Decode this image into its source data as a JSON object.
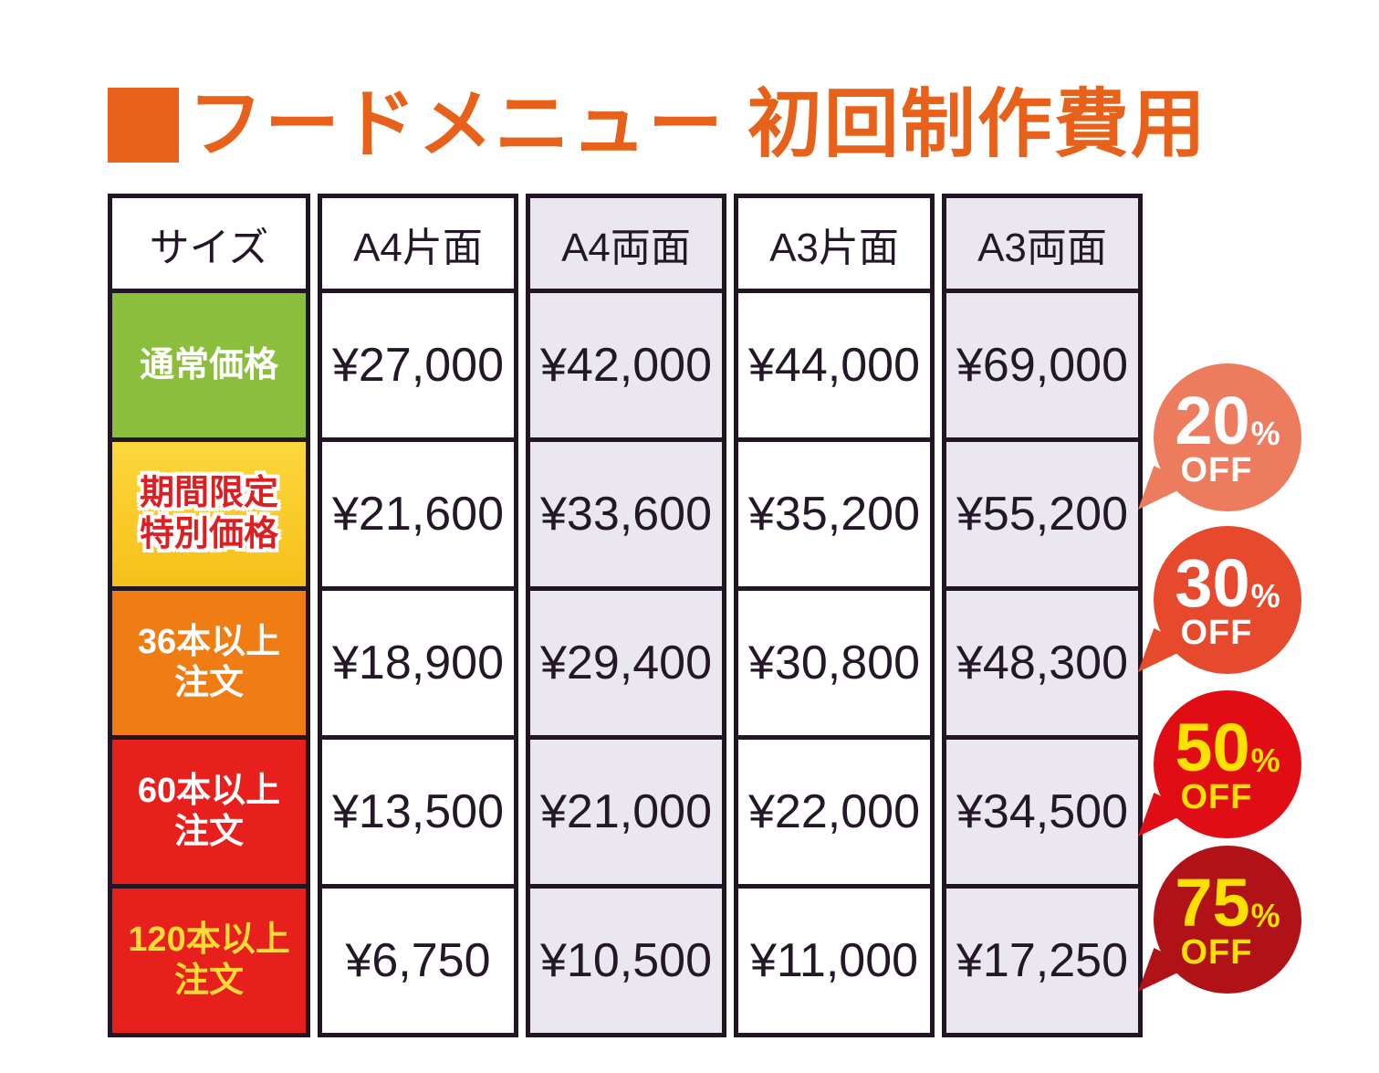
{
  "title": {
    "text": "フードメニュー 初回制作費用",
    "color": "#E8611A"
  },
  "chart_data": {
    "type": "table",
    "title": "フードメニュー 初回制作費用",
    "columns": [
      "サイズ",
      "A4片面",
      "A4両面",
      "A3片面",
      "A3両面"
    ],
    "rows": [
      [
        "通常価格",
        "¥27,000",
        "¥42,000",
        "¥44,000",
        "¥69,000"
      ],
      [
        "期間限定特別価格",
        "¥21,600",
        "¥33,600",
        "¥35,200",
        "¥55,200"
      ],
      [
        "36本以上注文",
        "¥18,900",
        "¥29,400",
        "¥30,800",
        "¥48,300"
      ],
      [
        "60本以上注文",
        "¥13,500",
        "¥21,000",
        "¥22,000",
        "¥34,500"
      ],
      [
        "120本以上注文",
        "¥6,750",
        "¥10,500",
        "¥11,000",
        "¥17,250"
      ]
    ],
    "annotations": [
      "20%OFF",
      "30%OFF",
      "50%OFF",
      "75%OFF"
    ]
  },
  "table": {
    "row_labels": [
      [
        "通常価格"
      ],
      [
        "期間限定",
        "特別価格"
      ],
      [
        "36本以上",
        "注文"
      ],
      [
        "60本以上",
        "注文"
      ],
      [
        "120本以上",
        "注文"
      ]
    ],
    "row_colors": [
      {
        "bg": "#8CBE3E",
        "text": "#FFFFFF"
      },
      {
        "bg": "#FBCB2A",
        "text": "#DD1F21"
      },
      {
        "bg": "#F07C14",
        "text": "#FFFFFF"
      },
      {
        "bg": "#E8201D",
        "text": "#FFFFFF"
      },
      {
        "bg": "#E8201D",
        "text": "#FFDD35"
      }
    ],
    "column_shades": [
      "#FFFFFF",
      "#FFFFFF",
      "#EAE8EE",
      "#FFFFFF",
      "#EAE8EE"
    ],
    "border_color": "#221625"
  },
  "badges": [
    {
      "percent": "20",
      "unit": "%",
      "label": "OFF",
      "bg": "#ED7B5E",
      "text": "#FFFFFF"
    },
    {
      "percent": "30",
      "unit": "%",
      "label": "OFF",
      "bg": "#E6492C",
      "text": "#FFFFFF"
    },
    {
      "percent": "50",
      "unit": "%",
      "label": "OFF",
      "bg": "#E00D15",
      "text": "#FFE100"
    },
    {
      "percent": "75",
      "unit": "%",
      "label": "OFF",
      "bg": "#B11217",
      "text": "#FFE100"
    }
  ]
}
